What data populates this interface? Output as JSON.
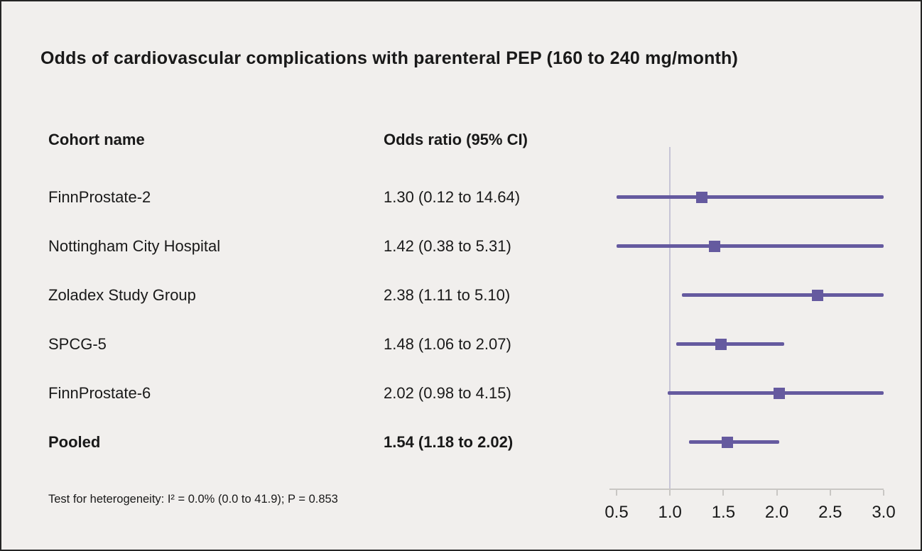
{
  "title": "Odds of cardiovascular complications with parenteral PEP (160 to 240 mg/month)",
  "columns": {
    "cohort": "Cohort name",
    "odds": "Odds ratio (95% CI)"
  },
  "footnote": "Test for heterogeneity: I² = 0.0% (0.0 to 41.9); P = 0.853",
  "colors": {
    "accent": "#655a9f",
    "reference_line": "#c7c5d6",
    "axis": "#c9c7c4",
    "background": "#f1efed",
    "text": "#191919"
  },
  "chart_data": {
    "type": "forest",
    "title": "Odds of cardiovascular complications with parenteral PEP (160 to 240 mg/month)",
    "xlim": [
      0.5,
      3.0
    ],
    "x_ticks": [
      0.5,
      1.0,
      1.5,
      2.0,
      2.5,
      3.0
    ],
    "reference_line": 1.0,
    "grid": false,
    "rows": [
      {
        "name": "FinnProstate-2",
        "label": "1.30 (0.12 to 14.64)",
        "estimate": 1.3,
        "ci_low": 0.12,
        "ci_high": 14.64,
        "bold": false
      },
      {
        "name": "Nottingham City Hospital",
        "label": "1.42 (0.38 to 5.31)",
        "estimate": 1.42,
        "ci_low": 0.38,
        "ci_high": 5.31,
        "bold": false
      },
      {
        "name": "Zoladex Study Group",
        "label": "2.38 (1.11 to 5.10)",
        "estimate": 2.38,
        "ci_low": 1.11,
        "ci_high": 5.1,
        "bold": false
      },
      {
        "name": "SPCG-5",
        "label": "1.48 (1.06 to 2.07)",
        "estimate": 1.48,
        "ci_low": 1.06,
        "ci_high": 2.07,
        "bold": false
      },
      {
        "name": "FinnProstate-6",
        "label": "2.02 (0.98 to 4.15)",
        "estimate": 2.02,
        "ci_low": 0.98,
        "ci_high": 4.15,
        "bold": false
      },
      {
        "name": "Pooled",
        "label": "1.54 (1.18 to 2.02)",
        "estimate": 1.54,
        "ci_low": 1.18,
        "ci_high": 2.02,
        "bold": true
      }
    ]
  }
}
